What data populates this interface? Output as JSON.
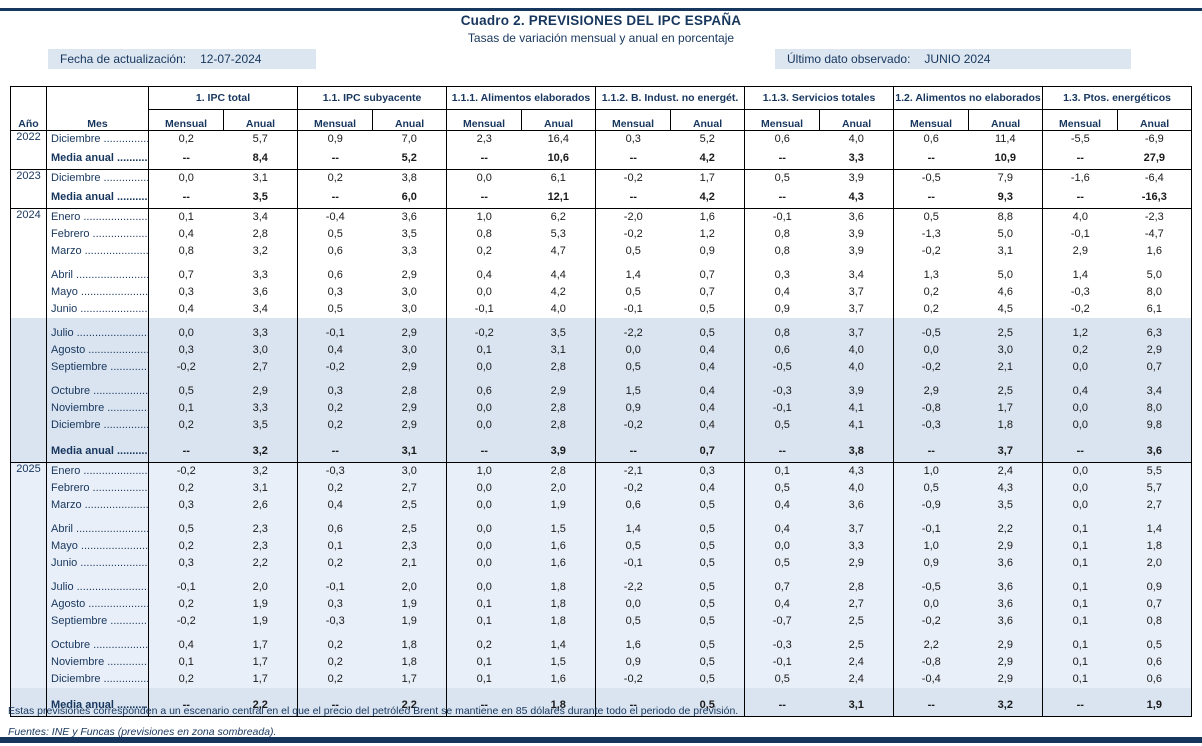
{
  "page": {
    "title": "Cuadro 2. PREVISIONES DEL IPC ESPAÑA",
    "subtitle": "Tasas de variación mensual y anual en porcentaje"
  },
  "meta": {
    "update_label": "Fecha de actualización:",
    "update_value": "12-07-2024",
    "observed_label": "Último dato observado:",
    "observed_value": "JUNIO 2024"
  },
  "table": {
    "col_year": "Año",
    "col_month": "Mes",
    "groups": [
      "1. IPC total",
      "1.1. IPC subyacente",
      "1.1.1. Alimentos elaborados",
      "1.1.2. B. Indust. no energét.",
      "1.1.3. Servicios totales",
      "1.2. Alimentos no elaborados",
      "1.3. Ptos. energéticos"
    ],
    "subcols": [
      "Mensual",
      "Anual"
    ],
    "rows": [
      {
        "y": "2022",
        "m": "Diciembre",
        "b": false,
        "s": 0,
        "g": false,
        "v": [
          "0,2",
          "5,7",
          "0,9",
          "7,0",
          "2,3",
          "16,4",
          "0,3",
          "5,2",
          "0,6",
          "4,0",
          "0,6",
          "11,4",
          "-5,5",
          "-6,9"
        ]
      },
      {
        "y": "",
        "m": "Media anual",
        "b": true,
        "s": 0,
        "g": false,
        "v": [
          "--",
          "8,4",
          "--",
          "5,2",
          "--",
          "10,6",
          "--",
          "4,2",
          "--",
          "3,3",
          "--",
          "10,9",
          "--",
          "27,9"
        ]
      },
      {
        "y": "2023",
        "m": "Diciembre",
        "b": false,
        "s": 0,
        "g": false,
        "v": [
          "0,0",
          "3,1",
          "0,2",
          "3,8",
          "0,0",
          "6,1",
          "-0,2",
          "1,7",
          "0,5",
          "3,9",
          "-0,5",
          "7,9",
          "-1,6",
          "-6,4"
        ]
      },
      {
        "y": "",
        "m": "Media anual",
        "b": true,
        "s": 0,
        "g": false,
        "v": [
          "--",
          "3,5",
          "--",
          "6,0",
          "--",
          "12,1",
          "--",
          "4,2",
          "--",
          "4,3",
          "--",
          "9,3",
          "--",
          "-16,3"
        ]
      },
      {
        "y": "2024",
        "m": "Enero",
        "b": false,
        "s": 0,
        "g": false,
        "v": [
          "0,1",
          "3,4",
          "-0,4",
          "3,6",
          "1,0",
          "6,2",
          "-2,0",
          "1,6",
          "-0,1",
          "3,6",
          "0,5",
          "8,8",
          "4,0",
          "-2,3"
        ]
      },
      {
        "y": "",
        "m": "Febrero",
        "b": false,
        "s": 0,
        "g": false,
        "v": [
          "0,4",
          "2,8",
          "0,5",
          "3,5",
          "0,8",
          "5,3",
          "-0,2",
          "1,2",
          "0,8",
          "3,9",
          "-1,3",
          "5,0",
          "-0,1",
          "-4,7"
        ]
      },
      {
        "y": "",
        "m": "Marzo",
        "b": false,
        "s": 0,
        "g": false,
        "v": [
          "0,8",
          "3,2",
          "0,6",
          "3,3",
          "0,2",
          "4,7",
          "0,5",
          "0,9",
          "0,8",
          "3,9",
          "-0,2",
          "3,1",
          "2,9",
          "1,6"
        ]
      },
      {
        "y": "",
        "m": "Abril",
        "b": false,
        "s": 0,
        "g": true,
        "v": [
          "0,7",
          "3,3",
          "0,6",
          "2,9",
          "0,4",
          "4,4",
          "1,4",
          "0,7",
          "0,3",
          "3,4",
          "1,3",
          "5,0",
          "1,4",
          "5,0"
        ]
      },
      {
        "y": "",
        "m": "Mayo",
        "b": false,
        "s": 0,
        "g": false,
        "v": [
          "0,3",
          "3,6",
          "0,3",
          "3,0",
          "0,0",
          "4,2",
          "0,5",
          "0,7",
          "0,4",
          "3,7",
          "0,2",
          "4,6",
          "-0,3",
          "8,0"
        ]
      },
      {
        "y": "",
        "m": "Junio",
        "b": false,
        "s": 0,
        "g": false,
        "v": [
          "0,4",
          "3,4",
          "0,5",
          "3,0",
          "-0,1",
          "4,0",
          "-0,1",
          "0,5",
          "0,9",
          "3,7",
          "0,2",
          "4,5",
          "-0,2",
          "6,1"
        ]
      },
      {
        "y": "",
        "m": "Julio",
        "b": false,
        "s": 1,
        "g": true,
        "v": [
          "0,0",
          "3,3",
          "-0,1",
          "2,9",
          "-0,2",
          "3,5",
          "-2,2",
          "0,5",
          "0,8",
          "3,7",
          "-0,5",
          "2,5",
          "1,2",
          "6,3"
        ]
      },
      {
        "y": "",
        "m": "Agosto",
        "b": false,
        "s": 1,
        "g": false,
        "v": [
          "0,3",
          "3,0",
          "0,4",
          "3,0",
          "0,1",
          "3,1",
          "0,0",
          "0,4",
          "0,6",
          "4,0",
          "0,0",
          "3,0",
          "0,2",
          "2,9"
        ]
      },
      {
        "y": "",
        "m": "Septiembre",
        "b": false,
        "s": 1,
        "g": false,
        "v": [
          "-0,2",
          "2,7",
          "-0,2",
          "2,9",
          "0,0",
          "2,8",
          "0,5",
          "0,4",
          "-0,5",
          "4,0",
          "-0,2",
          "2,1",
          "0,0",
          "0,7"
        ]
      },
      {
        "y": "",
        "m": "Octubre",
        "b": false,
        "s": 1,
        "g": true,
        "v": [
          "0,5",
          "2,9",
          "0,3",
          "2,8",
          "0,6",
          "2,9",
          "1,5",
          "0,4",
          "-0,3",
          "3,9",
          "2,9",
          "2,5",
          "0,4",
          "3,4"
        ]
      },
      {
        "y": "",
        "m": "Noviembre",
        "b": false,
        "s": 1,
        "g": false,
        "v": [
          "0,1",
          "3,3",
          "0,2",
          "2,9",
          "0,0",
          "2,8",
          "0,9",
          "0,4",
          "-0,1",
          "4,1",
          "-0,8",
          "1,7",
          "0,0",
          "8,0"
        ]
      },
      {
        "y": "",
        "m": "Diciembre",
        "b": false,
        "s": 1,
        "g": false,
        "v": [
          "0,2",
          "3,5",
          "0,2",
          "2,9",
          "0,0",
          "2,8",
          "-0,2",
          "0,4",
          "0,5",
          "4,1",
          "-0,3",
          "1,8",
          "0,0",
          "9,8"
        ]
      },
      {
        "y": "",
        "m": "Media anual",
        "b": true,
        "s": 1,
        "g": true,
        "v": [
          "--",
          "3,2",
          "--",
          "3,1",
          "--",
          "3,9",
          "--",
          "0,7",
          "--",
          "3,8",
          "--",
          "3,7",
          "--",
          "3,6"
        ]
      },
      {
        "y": "2025",
        "m": "Enero",
        "b": false,
        "s": 2,
        "g": false,
        "v": [
          "-0,2",
          "3,2",
          "-0,3",
          "3,0",
          "1,0",
          "2,8",
          "-2,1",
          "0,3",
          "0,1",
          "4,3",
          "1,0",
          "2,4",
          "0,0",
          "5,5"
        ]
      },
      {
        "y": "",
        "m": "Febrero",
        "b": false,
        "s": 2,
        "g": false,
        "v": [
          "0,2",
          "3,1",
          "0,2",
          "2,7",
          "0,0",
          "2,0",
          "-0,2",
          "0,4",
          "0,5",
          "4,0",
          "0,5",
          "4,3",
          "0,0",
          "5,7"
        ]
      },
      {
        "y": "",
        "m": "Marzo",
        "b": false,
        "s": 2,
        "g": false,
        "v": [
          "0,3",
          "2,6",
          "0,4",
          "2,5",
          "0,0",
          "1,9",
          "0,6",
          "0,5",
          "0,4",
          "3,6",
          "-0,9",
          "3,5",
          "0,0",
          "2,7"
        ]
      },
      {
        "y": "",
        "m": "Abril",
        "b": false,
        "s": 2,
        "g": true,
        "v": [
          "0,5",
          "2,3",
          "0,6",
          "2,5",
          "0,0",
          "1,5",
          "1,4",
          "0,5",
          "0,4",
          "3,7",
          "-0,1",
          "2,2",
          "0,1",
          "1,4"
        ]
      },
      {
        "y": "",
        "m": "Mayo",
        "b": false,
        "s": 2,
        "g": false,
        "v": [
          "0,2",
          "2,3",
          "0,1",
          "2,3",
          "0,0",
          "1,6",
          "0,5",
          "0,5",
          "0,0",
          "3,3",
          "1,0",
          "2,9",
          "0,1",
          "1,8"
        ]
      },
      {
        "y": "",
        "m": "Junio",
        "b": false,
        "s": 2,
        "g": false,
        "v": [
          "0,3",
          "2,2",
          "0,2",
          "2,1",
          "0,0",
          "1,6",
          "-0,1",
          "0,5",
          "0,5",
          "2,9",
          "0,9",
          "3,6",
          "0,1",
          "2,0"
        ]
      },
      {
        "y": "",
        "m": "Julio",
        "b": false,
        "s": 2,
        "g": true,
        "v": [
          "-0,1",
          "2,0",
          "-0,1",
          "2,0",
          "0,0",
          "1,8",
          "-2,2",
          "0,5",
          "0,7",
          "2,8",
          "-0,5",
          "3,6",
          "0,1",
          "0,9"
        ]
      },
      {
        "y": "",
        "m": "Agosto",
        "b": false,
        "s": 2,
        "g": false,
        "v": [
          "0,2",
          "1,9",
          "0,3",
          "1,9",
          "0,1",
          "1,8",
          "0,0",
          "0,5",
          "0,4",
          "2,7",
          "0,0",
          "3,6",
          "0,1",
          "0,7"
        ]
      },
      {
        "y": "",
        "m": "Septiembre",
        "b": false,
        "s": 2,
        "g": false,
        "v": [
          "-0,2",
          "1,9",
          "-0,3",
          "1,9",
          "0,1",
          "1,8",
          "0,5",
          "0,5",
          "-0,7",
          "2,5",
          "-0,2",
          "3,6",
          "0,1",
          "0,8"
        ]
      },
      {
        "y": "",
        "m": "Octubre",
        "b": false,
        "s": 2,
        "g": true,
        "v": [
          "0,4",
          "1,7",
          "0,2",
          "1,8",
          "0,2",
          "1,4",
          "1,6",
          "0,5",
          "-0,3",
          "2,5",
          "2,2",
          "2,9",
          "0,1",
          "0,5"
        ]
      },
      {
        "y": "",
        "m": "Noviembre",
        "b": false,
        "s": 2,
        "g": false,
        "v": [
          "0,1",
          "1,7",
          "0,2",
          "1,8",
          "0,1",
          "1,5",
          "0,9",
          "0,5",
          "-0,1",
          "2,4",
          "-0,8",
          "2,9",
          "0,1",
          "0,6"
        ]
      },
      {
        "y": "",
        "m": "Diciembre",
        "b": false,
        "s": 2,
        "g": false,
        "v": [
          "0,2",
          "1,7",
          "0,2",
          "1,7",
          "0,1",
          "1,6",
          "-0,2",
          "0,5",
          "0,5",
          "2,4",
          "-0,4",
          "2,9",
          "0,1",
          "0,6"
        ]
      },
      {
        "y": "",
        "m": "Media anual",
        "b": true,
        "s": 1,
        "g": true,
        "v": [
          "--",
          "2,2",
          "--",
          "2,2",
          "--",
          "1,8",
          "--",
          "0,5",
          "--",
          "3,1",
          "--",
          "3,2",
          "--",
          "1,9"
        ]
      }
    ]
  },
  "notes": {
    "scenario": "Estas previsiones corresponden a un escenario central en el que el precio del petróleo Brent se mantiene en 85 dólares durante todo el periodo de previsión.",
    "sources": "Fuentes: INE y Funcas (previsiones en zona sombreada)."
  },
  "colors": {
    "accent": "#17365d",
    "band_bg": "#dce6f1",
    "shade_strong": "#d9e4f0",
    "shade_faint": "#e9eff8",
    "grid": "#000000"
  }
}
